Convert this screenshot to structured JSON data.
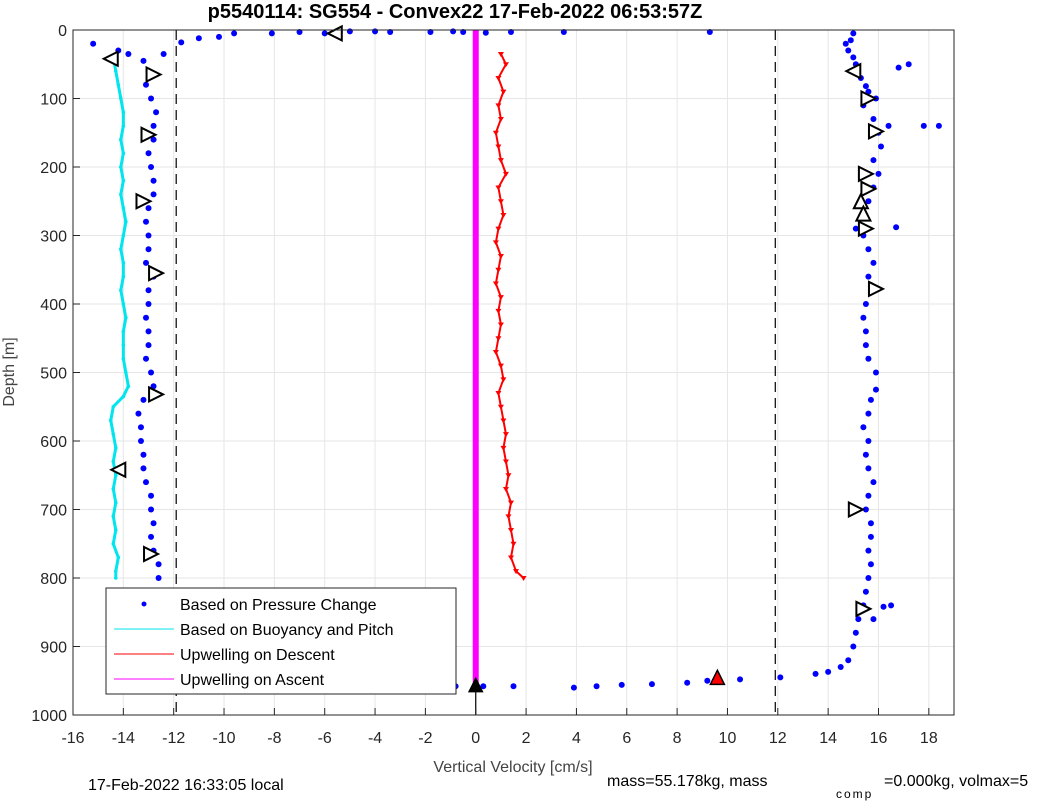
{
  "chart_data": {
    "type": "scatter",
    "title": "p5540114: SG554 - Convex22 17-Feb-2022 06:53:57Z",
    "xlabel": "Vertical Velocity [cm/s]",
    "ylabel": "Depth [m]",
    "xlim": [
      -16,
      19
    ],
    "ylim": [
      0,
      1000
    ],
    "y_reversed": true,
    "grid": true,
    "x_ticks": [
      -16,
      -14,
      -12,
      -10,
      -8,
      -6,
      -4,
      -2,
      0,
      2,
      4,
      6,
      8,
      10,
      12,
      14,
      16,
      18
    ],
    "y_ticks": [
      0,
      100,
      200,
      300,
      400,
      500,
      600,
      700,
      800,
      900,
      1000
    ],
    "reference_lines": [
      {
        "x": -11.9,
        "style": "dashed",
        "color": "#000000"
      },
      {
        "x": 11.9,
        "style": "dashed",
        "color": "#000000"
      },
      {
        "x": 0,
        "style": "solid",
        "color": "#000000"
      }
    ],
    "legend": {
      "position": "bottom-left",
      "entries": [
        {
          "label": "Based on Pressure Change",
          "color": "#0000ff",
          "marker": "dot"
        },
        {
          "label": "Based on Buoyancy and Pitch",
          "color": "#00e5ee",
          "marker": "line"
        },
        {
          "label": "Upwelling on Descent",
          "color": "#ff0000",
          "marker": "line"
        },
        {
          "label": "Upwelling on Ascent",
          "color": "#ff00ff",
          "marker": "line"
        }
      ]
    },
    "series": [
      {
        "name": "Based on Pressure Change",
        "color": "#0000ff",
        "points": [
          [
            -15.2,
            20
          ],
          [
            -13.8,
            35
          ],
          [
            -13.2,
            45
          ],
          [
            -13.0,
            60
          ],
          [
            -13.1,
            80
          ],
          [
            -12.9,
            100
          ],
          [
            -12.7,
            120
          ],
          [
            -12.8,
            140
          ],
          [
            -12.8,
            160
          ],
          [
            -13.0,
            180
          ],
          [
            -12.9,
            200
          ],
          [
            -12.8,
            220
          ],
          [
            -12.8,
            240
          ],
          [
            -13.0,
            260
          ],
          [
            -13.1,
            280
          ],
          [
            -13.0,
            300
          ],
          [
            -13.0,
            320
          ],
          [
            -13.1,
            340
          ],
          [
            -12.8,
            360
          ],
          [
            -13.0,
            380
          ],
          [
            -13.0,
            400
          ],
          [
            -13.1,
            420
          ],
          [
            -13.0,
            440
          ],
          [
            -13.0,
            460
          ],
          [
            -13.1,
            480
          ],
          [
            -12.9,
            500
          ],
          [
            -12.8,
            520
          ],
          [
            -13.2,
            540
          ],
          [
            -13.4,
            560
          ],
          [
            -13.3,
            580
          ],
          [
            -13.3,
            600
          ],
          [
            -13.2,
            620
          ],
          [
            -13.2,
            640
          ],
          [
            -13.1,
            660
          ],
          [
            -12.9,
            680
          ],
          [
            -12.9,
            700
          ],
          [
            -12.8,
            720
          ],
          [
            -12.9,
            740
          ],
          [
            -12.8,
            760
          ],
          [
            -12.6,
            780
          ],
          [
            -12.6,
            800
          ],
          [
            -12.7,
            820
          ],
          [
            -12.8,
            840
          ],
          [
            -12.9,
            860
          ],
          [
            -12.9,
            880
          ],
          [
            -13.0,
            900
          ],
          [
            -13.1,
            920
          ],
          [
            -13.0,
            935
          ],
          [
            -12.9,
            945
          ],
          [
            -14.2,
            30
          ],
          [
            -12.4,
            35
          ],
          [
            -11.7,
            18
          ],
          [
            -11.0,
            12
          ],
          [
            -10.2,
            10
          ],
          [
            -9.6,
            5
          ],
          [
            -8.1,
            5
          ],
          [
            -7.0,
            3
          ],
          [
            -6.0,
            5
          ],
          [
            -5.4,
            3
          ],
          [
            -5.0,
            2
          ],
          [
            -4.0,
            2
          ],
          [
            -3.4,
            3
          ],
          [
            -1.8,
            3
          ],
          [
            -0.9,
            2
          ],
          [
            -0.5,
            3
          ],
          [
            0.4,
            4
          ],
          [
            1.4,
            3
          ],
          [
            3.5,
            3
          ],
          [
            9.3,
            3
          ],
          [
            -12.8,
            950
          ],
          [
            -12.5,
            955
          ],
          [
            -10.6,
            960
          ],
          [
            -9.5,
            955
          ],
          [
            -7.8,
            955
          ],
          [
            -4.5,
            955
          ],
          [
            -3.3,
            957
          ],
          [
            -2.6,
            957
          ],
          [
            -1.6,
            958
          ],
          [
            -0.8,
            958
          ],
          [
            0.3,
            958
          ],
          [
            1.5,
            958
          ],
          [
            3.9,
            960
          ],
          [
            4.8,
            958
          ],
          [
            5.8,
            956
          ],
          [
            7.0,
            955
          ],
          [
            8.4,
            953
          ],
          [
            9.2,
            950
          ],
          [
            10.5,
            948
          ],
          [
            12.1,
            945
          ],
          [
            13.5,
            940
          ],
          [
            14.0,
            937
          ],
          [
            14.5,
            930
          ],
          [
            14.8,
            920
          ],
          [
            15.0,
            900
          ],
          [
            15.1,
            880
          ],
          [
            15.2,
            860
          ],
          [
            15.4,
            840
          ],
          [
            15.5,
            820
          ],
          [
            15.6,
            800
          ],
          [
            15.7,
            780
          ],
          [
            15.6,
            760
          ],
          [
            15.7,
            740
          ],
          [
            15.7,
            720
          ],
          [
            15.5,
            700
          ],
          [
            15.6,
            680
          ],
          [
            15.8,
            660
          ],
          [
            15.6,
            640
          ],
          [
            15.5,
            620
          ],
          [
            15.6,
            600
          ],
          [
            15.4,
            580
          ],
          [
            15.6,
            560
          ],
          [
            15.7,
            540
          ],
          [
            15.9,
            525
          ],
          [
            15.9,
            500
          ],
          [
            15.6,
            480
          ],
          [
            15.5,
            460
          ],
          [
            15.5,
            440
          ],
          [
            15.4,
            420
          ],
          [
            15.5,
            400
          ],
          [
            15.7,
            380
          ],
          [
            15.6,
            360
          ],
          [
            15.8,
            340
          ],
          [
            15.6,
            320
          ],
          [
            15.4,
            300
          ],
          [
            15.1,
            290
          ],
          [
            16.7,
            288
          ],
          [
            15.4,
            270
          ],
          [
            15.6,
            250
          ],
          [
            15.8,
            230
          ],
          [
            16.0,
            210
          ],
          [
            15.8,
            190
          ],
          [
            16.1,
            170
          ],
          [
            16.0,
            150
          ],
          [
            16.4,
            140
          ],
          [
            17.8,
            140
          ],
          [
            18.4,
            140
          ],
          [
            15.8,
            130
          ],
          [
            15.4,
            110
          ],
          [
            15.6,
            90
          ],
          [
            15.3,
            70
          ],
          [
            14.9,
            60
          ],
          [
            16.8,
            55
          ],
          [
            17.2,
            50
          ],
          [
            15.0,
            40
          ],
          [
            14.8,
            30
          ],
          [
            14.9,
            15
          ],
          [
            15.0,
            5
          ],
          [
            14.7,
            20
          ],
          [
            15.1,
            50
          ],
          [
            15.5,
            82
          ],
          [
            15.9,
            100
          ],
          [
            15.8,
            860
          ],
          [
            16.2,
            842
          ],
          [
            16.5,
            840
          ],
          [
            15.1,
            700
          ]
        ]
      },
      {
        "name": "Based on Buoyancy and Pitch",
        "color": "#00e5ee",
        "points": [
          [
            -14.4,
            40
          ],
          [
            -14.3,
            60
          ],
          [
            -14.2,
            80
          ],
          [
            -14.1,
            100
          ],
          [
            -14.0,
            120
          ],
          [
            -14.0,
            140
          ],
          [
            -14.1,
            160
          ],
          [
            -14.0,
            180
          ],
          [
            -14.1,
            200
          ],
          [
            -14.0,
            220
          ],
          [
            -14.1,
            240
          ],
          [
            -14.0,
            260
          ],
          [
            -13.9,
            280
          ],
          [
            -14.0,
            300
          ],
          [
            -14.1,
            320
          ],
          [
            -14.0,
            340
          ],
          [
            -14.0,
            360
          ],
          [
            -14.1,
            380
          ],
          [
            -14.0,
            400
          ],
          [
            -13.9,
            420
          ],
          [
            -14.0,
            440
          ],
          [
            -14.0,
            460
          ],
          [
            -14.0,
            480
          ],
          [
            -13.9,
            500
          ],
          [
            -13.8,
            520
          ],
          [
            -14.0,
            535
          ],
          [
            -14.4,
            550
          ],
          [
            -14.5,
            570
          ],
          [
            -14.4,
            590
          ],
          [
            -14.3,
            610
          ],
          [
            -14.4,
            630
          ],
          [
            -14.3,
            650
          ],
          [
            -14.4,
            670
          ],
          [
            -14.3,
            690
          ],
          [
            -14.4,
            710
          ],
          [
            -14.3,
            730
          ],
          [
            -14.4,
            750
          ],
          [
            -14.2,
            770
          ],
          [
            -14.3,
            790
          ],
          [
            -14.3,
            800
          ]
        ]
      },
      {
        "name": "Upwelling on Descent",
        "color": "#ff0000",
        "points": [
          [
            1.0,
            35
          ],
          [
            1.2,
            50
          ],
          [
            0.9,
            70
          ],
          [
            1.1,
            90
          ],
          [
            0.9,
            110
          ],
          [
            1.0,
            130
          ],
          [
            0.8,
            150
          ],
          [
            0.9,
            170
          ],
          [
            1.0,
            190
          ],
          [
            1.2,
            210
          ],
          [
            0.9,
            230
          ],
          [
            1.0,
            250
          ],
          [
            1.1,
            270
          ],
          [
            0.9,
            290
          ],
          [
            0.8,
            310
          ],
          [
            1.0,
            330
          ],
          [
            0.9,
            350
          ],
          [
            0.8,
            370
          ],
          [
            1.0,
            390
          ],
          [
            0.9,
            410
          ],
          [
            1.0,
            430
          ],
          [
            0.9,
            450
          ],
          [
            0.8,
            470
          ],
          [
            1.0,
            490
          ],
          [
            1.1,
            510
          ],
          [
            0.9,
            530
          ],
          [
            1.0,
            550
          ],
          [
            1.1,
            570
          ],
          [
            1.2,
            590
          ],
          [
            1.1,
            610
          ],
          [
            1.2,
            630
          ],
          [
            1.3,
            650
          ],
          [
            1.2,
            670
          ],
          [
            1.4,
            690
          ],
          [
            1.3,
            710
          ],
          [
            1.4,
            730
          ],
          [
            1.5,
            750
          ],
          [
            1.4,
            770
          ],
          [
            1.6,
            790
          ],
          [
            1.9,
            800
          ]
        ]
      },
      {
        "name": "Upwelling on Ascent",
        "color": "#ff00ff",
        "points": [
          [
            0,
            0
          ],
          [
            0,
            955
          ]
        ]
      }
    ],
    "markers": [
      {
        "shape": "triangle-left",
        "points": [
          [
            -5.6,
            5
          ],
          [
            -14.5,
            42
          ],
          [
            -14.2,
            642
          ],
          [
            15.0,
            60
          ]
        ]
      },
      {
        "shape": "triangle-right",
        "points": [
          [
            -12.8,
            65
          ],
          [
            -13.0,
            153
          ],
          [
            -13.2,
            250
          ],
          [
            -12.7,
            355
          ],
          [
            -12.7,
            532
          ],
          [
            -12.9,
            765
          ],
          [
            -12.8,
            920
          ],
          [
            15.6,
            100
          ],
          [
            15.9,
            148
          ],
          [
            15.5,
            210
          ],
          [
            15.6,
            232
          ],
          [
            15.5,
            290
          ],
          [
            15.9,
            378
          ],
          [
            15.1,
            700
          ],
          [
            15.4,
            845
          ]
        ]
      },
      {
        "shape": "triangle-up",
        "points": [
          [
            15.3,
            250
          ],
          [
            15.4,
            268
          ],
          [
            -12.7,
            952
          ]
        ]
      },
      {
        "shape": "triangle-up-red",
        "points": [
          [
            9.6,
            945
          ]
        ]
      },
      {
        "shape": "star-black",
        "points": [
          [
            0,
            956
          ],
          [
            -12.7,
            952
          ]
        ]
      }
    ]
  },
  "footer": {
    "local_time": "17-Feb-2022 16:33:05 local",
    "mass_text": "mass=55.178kg, mass",
    "comp_sub": "comp",
    "comp_text": "=0.000kg, volmax=5"
  }
}
